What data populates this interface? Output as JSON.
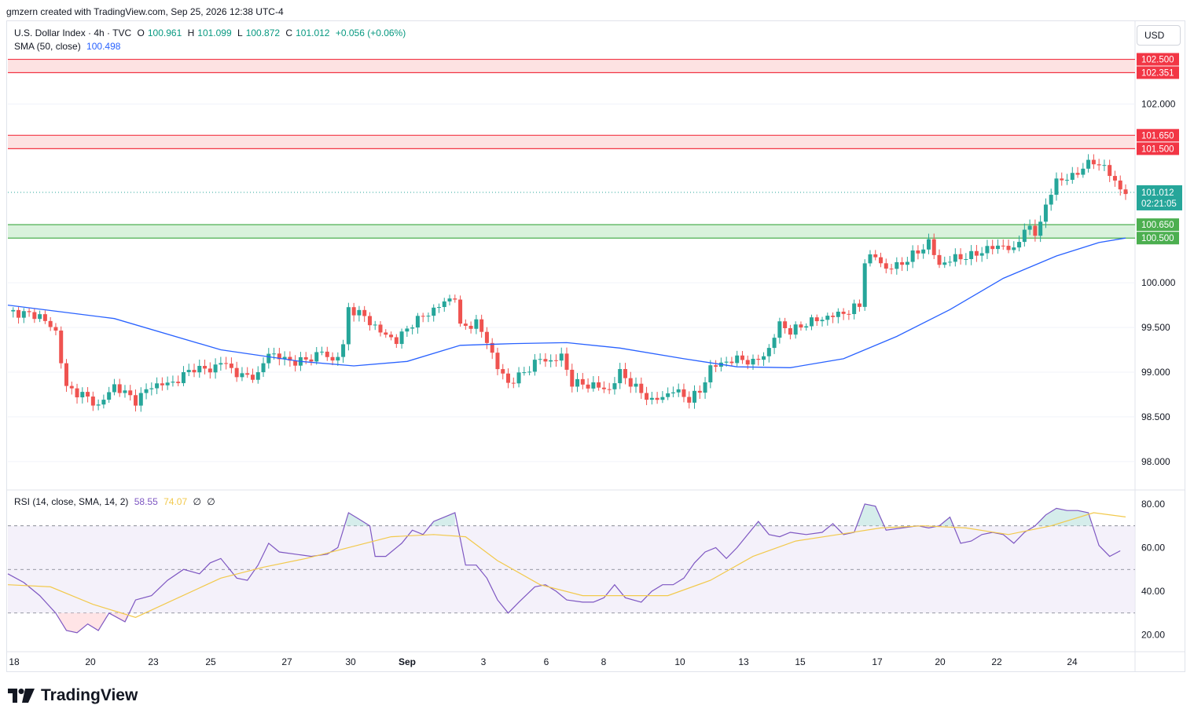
{
  "header": {
    "attribution": "gmzern created with TradingView.com, Sep 25, 2026 12:38 UTC-4"
  },
  "legend": {
    "symbol": "U.S. Dollar Index · 4h · TVC",
    "open_label": "O",
    "open": "100.961",
    "high_label": "H",
    "high": "101.099",
    "low_label": "L",
    "low": "100.872",
    "close_label": "C",
    "close": "101.012",
    "change": "+0.056 (+0.06%)",
    "sma_label": "SMA (50, close)",
    "sma_value": "100.498",
    "rsi_label": "RSI (14, close, SMA, 14, 2)",
    "rsi_value": "58.55",
    "rsi_ma_value": "74.07",
    "rsi_extra1": "∅",
    "rsi_extra2": "∅"
  },
  "currency_button": "USD",
  "brand": {
    "name": "TradingView",
    "icon": "tradingview-logo-icon"
  },
  "colors": {
    "up": "#26a69a",
    "down": "#ef5350",
    "sma": "#2962ff",
    "rsi": "#7e57c2",
    "rsi_ma": "#f2c94c",
    "resistance_fill": "#fde2e2",
    "support_fill": "#d9f2dc"
  },
  "chart_data": [
    {
      "type": "candlestick",
      "timeframe": "4h",
      "ylim": [
        97.7,
        102.9
      ],
      "yticks": [
        "98.000",
        "98.500",
        "99.000",
        "99.500",
        "100.000",
        "102.000"
      ],
      "x_tick_labels": [
        "18",
        "20",
        "23",
        "25",
        "27",
        "30",
        "Sep",
        "3",
        "6",
        "8",
        "10",
        "13",
        "15",
        "17",
        "20",
        "22",
        "24"
      ],
      "last_price": "101.012",
      "countdown": "02:21:05",
      "zones": [
        {
          "kind": "resistance",
          "top": 102.5,
          "bottom": 102.351,
          "top_label": "102.500",
          "bottom_label": "102.351"
        },
        {
          "kind": "resistance",
          "top": 101.65,
          "bottom": 101.5,
          "top_label": "101.650",
          "bottom_label": "101.500"
        },
        {
          "kind": "support",
          "top": 100.65,
          "bottom": 100.5,
          "top_label": "100.650",
          "bottom_label": "100.500"
        }
      ],
      "price_path": [
        [
          0,
          99.68
        ],
        [
          6,
          99.63
        ],
        [
          9,
          99.45
        ],
        [
          11,
          98.82
        ],
        [
          14,
          98.75
        ],
        [
          17,
          98.62
        ],
        [
          20,
          98.85
        ],
        [
          24,
          98.68
        ],
        [
          27,
          98.85
        ],
        [
          31,
          98.88
        ],
        [
          35,
          99.05
        ],
        [
          38,
          99.02
        ],
        [
          40,
          99.12
        ],
        [
          44,
          98.95
        ],
        [
          47,
          98.97
        ],
        [
          49,
          99.22
        ],
        [
          53,
          99.12
        ],
        [
          56,
          99.13
        ],
        [
          59,
          99.23
        ],
        [
          61,
          99.12
        ],
        [
          63,
          99.28
        ],
        [
          64,
          99.72
        ],
        [
          67,
          99.62
        ],
        [
          70,
          99.45
        ],
        [
          73,
          99.35
        ],
        [
          76,
          99.55
        ],
        [
          80,
          99.7
        ],
        [
          83,
          99.82
        ],
        [
          84,
          99.85
        ],
        [
          85,
          99.5
        ],
        [
          88,
          99.55
        ],
        [
          90,
          99.35
        ],
        [
          92,
          99.05
        ],
        [
          94,
          98.88
        ],
        [
          96,
          98.95
        ],
        [
          98,
          99.05
        ],
        [
          100,
          99.15
        ],
        [
          102,
          99.12
        ],
        [
          104,
          99.18
        ],
        [
          106,
          98.88
        ],
        [
          110,
          98.85
        ],
        [
          113,
          98.8
        ],
        [
          115,
          99.0
        ],
        [
          118,
          98.82
        ],
        [
          121,
          98.68
        ],
        [
          123,
          98.72
        ],
        [
          125,
          98.8
        ],
        [
          128,
          98.7
        ],
        [
          130,
          98.78
        ],
        [
          132,
          99.05
        ],
        [
          135,
          99.12
        ],
        [
          138,
          99.15
        ],
        [
          140,
          99.1
        ],
        [
          143,
          99.25
        ],
        [
          145,
          99.55
        ],
        [
          147,
          99.45
        ],
        [
          150,
          99.55
        ],
        [
          153,
          99.6
        ],
        [
          156,
          99.65
        ],
        [
          158,
          99.68
        ],
        [
          160,
          99.75
        ],
        [
          161,
          100.25
        ],
        [
          163,
          100.3
        ],
        [
          165,
          100.15
        ],
        [
          168,
          100.22
        ],
        [
          171,
          100.35
        ],
        [
          173,
          100.45
        ],
        [
          175,
          100.2
        ],
        [
          178,
          100.28
        ],
        [
          181,
          100.3
        ],
        [
          184,
          100.38
        ],
        [
          187,
          100.42
        ],
        [
          189,
          100.35
        ],
        [
          191,
          100.62
        ],
        [
          193,
          100.55
        ],
        [
          195,
          100.85
        ],
        [
          197,
          101.15
        ],
        [
          200,
          101.18
        ],
        [
          202,
          101.3
        ],
        [
          204,
          101.35
        ],
        [
          206,
          101.3
        ],
        [
          208,
          101.12
        ],
        [
          210,
          101.01
        ]
      ],
      "sma50_path": [
        [
          0,
          99.75
        ],
        [
          20,
          99.6
        ],
        [
          40,
          99.25
        ],
        [
          55,
          99.12
        ],
        [
          65,
          99.07
        ],
        [
          75,
          99.12
        ],
        [
          85,
          99.3
        ],
        [
          95,
          99.32
        ],
        [
          105,
          99.33
        ],
        [
          115,
          99.27
        ],
        [
          127,
          99.15
        ],
        [
          137,
          99.06
        ],
        [
          147,
          99.05
        ],
        [
          157,
          99.15
        ],
        [
          167,
          99.4
        ],
        [
          177,
          99.7
        ],
        [
          187,
          100.05
        ],
        [
          197,
          100.3
        ],
        [
          205,
          100.45
        ],
        [
          210,
          100.5
        ]
      ]
    },
    {
      "type": "line",
      "name": "RSI (14, close, SMA, 14, 2)",
      "ylim": [
        13,
        85
      ],
      "yticks": [
        "20.00",
        "40.00",
        "60.00",
        "80.00"
      ],
      "bands": {
        "upper": 70,
        "middle": 50,
        "lower": 30
      },
      "rsi_path": [
        [
          0,
          48
        ],
        [
          3,
          44
        ],
        [
          6,
          38
        ],
        [
          9,
          30
        ],
        [
          11,
          22
        ],
        [
          13,
          21
        ],
        [
          15,
          25
        ],
        [
          17,
          22
        ],
        [
          19,
          30
        ],
        [
          22,
          26
        ],
        [
          24,
          36
        ],
        [
          27,
          38
        ],
        [
          30,
          45
        ],
        [
          33,
          50
        ],
        [
          36,
          48
        ],
        [
          38,
          53
        ],
        [
          40,
          55
        ],
        [
          43,
          46
        ],
        [
          45,
          45
        ],
        [
          47,
          52
        ],
        [
          49,
          62
        ],
        [
          51,
          58
        ],
        [
          54,
          57
        ],
        [
          57,
          56
        ],
        [
          60,
          57
        ],
        [
          62,
          60
        ],
        [
          64,
          76
        ],
        [
          66,
          73
        ],
        [
          68,
          70
        ],
        [
          69,
          56
        ],
        [
          71,
          56
        ],
        [
          74,
          62
        ],
        [
          76,
          68
        ],
        [
          78,
          66
        ],
        [
          80,
          72
        ],
        [
          82,
          74
        ],
        [
          84,
          76
        ],
        [
          86,
          52
        ],
        [
          88,
          52
        ],
        [
          90,
          46
        ],
        [
          92,
          36
        ],
        [
          94,
          30
        ],
        [
          96,
          35
        ],
        [
          99,
          42
        ],
        [
          101,
          43
        ],
        [
          103,
          40
        ],
        [
          105,
          36
        ],
        [
          108,
          35
        ],
        [
          110,
          35
        ],
        [
          112,
          37
        ],
        [
          114,
          43
        ],
        [
          116,
          37
        ],
        [
          119,
          35
        ],
        [
          121,
          40
        ],
        [
          123,
          43
        ],
        [
          125,
          43
        ],
        [
          127,
          46
        ],
        [
          129,
          53
        ],
        [
          131,
          58
        ],
        [
          133,
          60
        ],
        [
          135,
          55
        ],
        [
          137,
          60
        ],
        [
          139,
          66
        ],
        [
          141,
          72
        ],
        [
          143,
          66
        ],
        [
          145,
          65
        ],
        [
          147,
          67
        ],
        [
          150,
          66
        ],
        [
          153,
          67
        ],
        [
          155,
          71
        ],
        [
          157,
          66
        ],
        [
          159,
          67
        ],
        [
          161,
          80
        ],
        [
          163,
          79
        ],
        [
          165,
          68
        ],
        [
          168,
          69
        ],
        [
          171,
          70
        ],
        [
          173,
          69
        ],
        [
          175,
          70
        ],
        [
          177,
          74
        ],
        [
          179,
          62
        ],
        [
          181,
          63
        ],
        [
          183,
          66
        ],
        [
          185,
          67
        ],
        [
          187,
          66
        ],
        [
          189,
          62
        ],
        [
          191,
          67
        ],
        [
          193,
          70
        ],
        [
          195,
          75
        ],
        [
          197,
          78
        ],
        [
          199,
          77
        ],
        [
          201,
          77
        ],
        [
          203,
          76
        ],
        [
          205,
          61
        ],
        [
          207,
          56
        ],
        [
          209,
          58.55
        ]
      ],
      "rsi_ma_path": [
        [
          0,
          43
        ],
        [
          8,
          42
        ],
        [
          16,
          34
        ],
        [
          24,
          28
        ],
        [
          32,
          37
        ],
        [
          40,
          46
        ],
        [
          48,
          51
        ],
        [
          56,
          55
        ],
        [
          64,
          60
        ],
        [
          72,
          65
        ],
        [
          80,
          66
        ],
        [
          86,
          65
        ],
        [
          92,
          54
        ],
        [
          100,
          43
        ],
        [
          108,
          38
        ],
        [
          116,
          38
        ],
        [
          124,
          38
        ],
        [
          132,
          45
        ],
        [
          140,
          56
        ],
        [
          148,
          63
        ],
        [
          156,
          66
        ],
        [
          164,
          69
        ],
        [
          172,
          70
        ],
        [
          180,
          69
        ],
        [
          188,
          66
        ],
        [
          196,
          70
        ],
        [
          204,
          76
        ],
        [
          210,
          74.07
        ]
      ]
    }
  ]
}
